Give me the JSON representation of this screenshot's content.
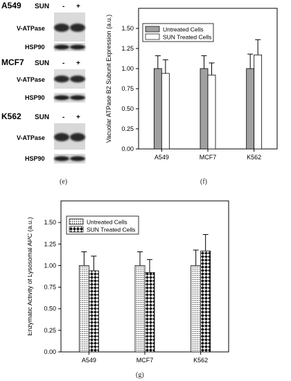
{
  "blots": {
    "panels": [
      {
        "cell_line": "A549",
        "treatment_label": "SUN",
        "lanes": [
          "-",
          "+"
        ],
        "proteins": [
          "V-ATPase",
          "HSP90"
        ]
      },
      {
        "cell_line": "MCF7",
        "treatment_label": "SUN",
        "lanes": [
          "-",
          "+"
        ],
        "proteins": [
          "V-ATPase",
          "HSP90"
        ]
      },
      {
        "cell_line": "K562",
        "treatment_label": "SUN",
        "lanes": [
          "-",
          "+"
        ],
        "proteins": [
          "V-ATPase",
          "HSP90"
        ]
      }
    ],
    "caption": "(e)"
  },
  "chart_data": [
    {
      "type": "bar",
      "panel_caption": "(f)",
      "ylabel": "Vacuolar ATPase B2 Subunit Expression (a.u.)",
      "categories": [
        "A549",
        "MCF7",
        "K562"
      ],
      "ylim": [
        0,
        1.75
      ],
      "yticks": [
        "0.00",
        "0.25",
        "0.50",
        "0.75",
        "1.00",
        "1.25",
        "1.50"
      ],
      "series": [
        {
          "name": "Untreated Cells",
          "values": [
            1.0,
            1.0,
            1.0
          ],
          "errors": [
            0.16,
            0.16,
            0.18
          ],
          "fill": "#a0a0a0"
        },
        {
          "name": "SUN Treated Cells",
          "values": [
            0.94,
            0.92,
            1.17
          ],
          "errors": [
            0.17,
            0.15,
            0.19
          ],
          "fill": "#ffffff"
        }
      ],
      "legend_position": "top-left",
      "grid": false
    },
    {
      "type": "bar",
      "panel_caption": "(g)",
      "ylabel": "Enzymatic Activity of Lysosomal APC (a.u.)",
      "categories": [
        "A549",
        "MCF7",
        "K562"
      ],
      "ylim": [
        0,
        1.75
      ],
      "yticks": [
        "0.00",
        "0.25",
        "0.50",
        "0.75",
        "1.00",
        "1.25",
        "1.50"
      ],
      "series": [
        {
          "name": "Untreated Cells",
          "values": [
            1.0,
            1.0,
            1.0
          ],
          "errors": [
            0.16,
            0.16,
            0.18
          ],
          "fill": "dots"
        },
        {
          "name": "SUN Treated Cells",
          "values": [
            0.94,
            0.92,
            1.17
          ],
          "errors": [
            0.17,
            0.15,
            0.19
          ],
          "fill": "checker"
        }
      ],
      "legend_position": "top-left",
      "grid": false
    }
  ]
}
